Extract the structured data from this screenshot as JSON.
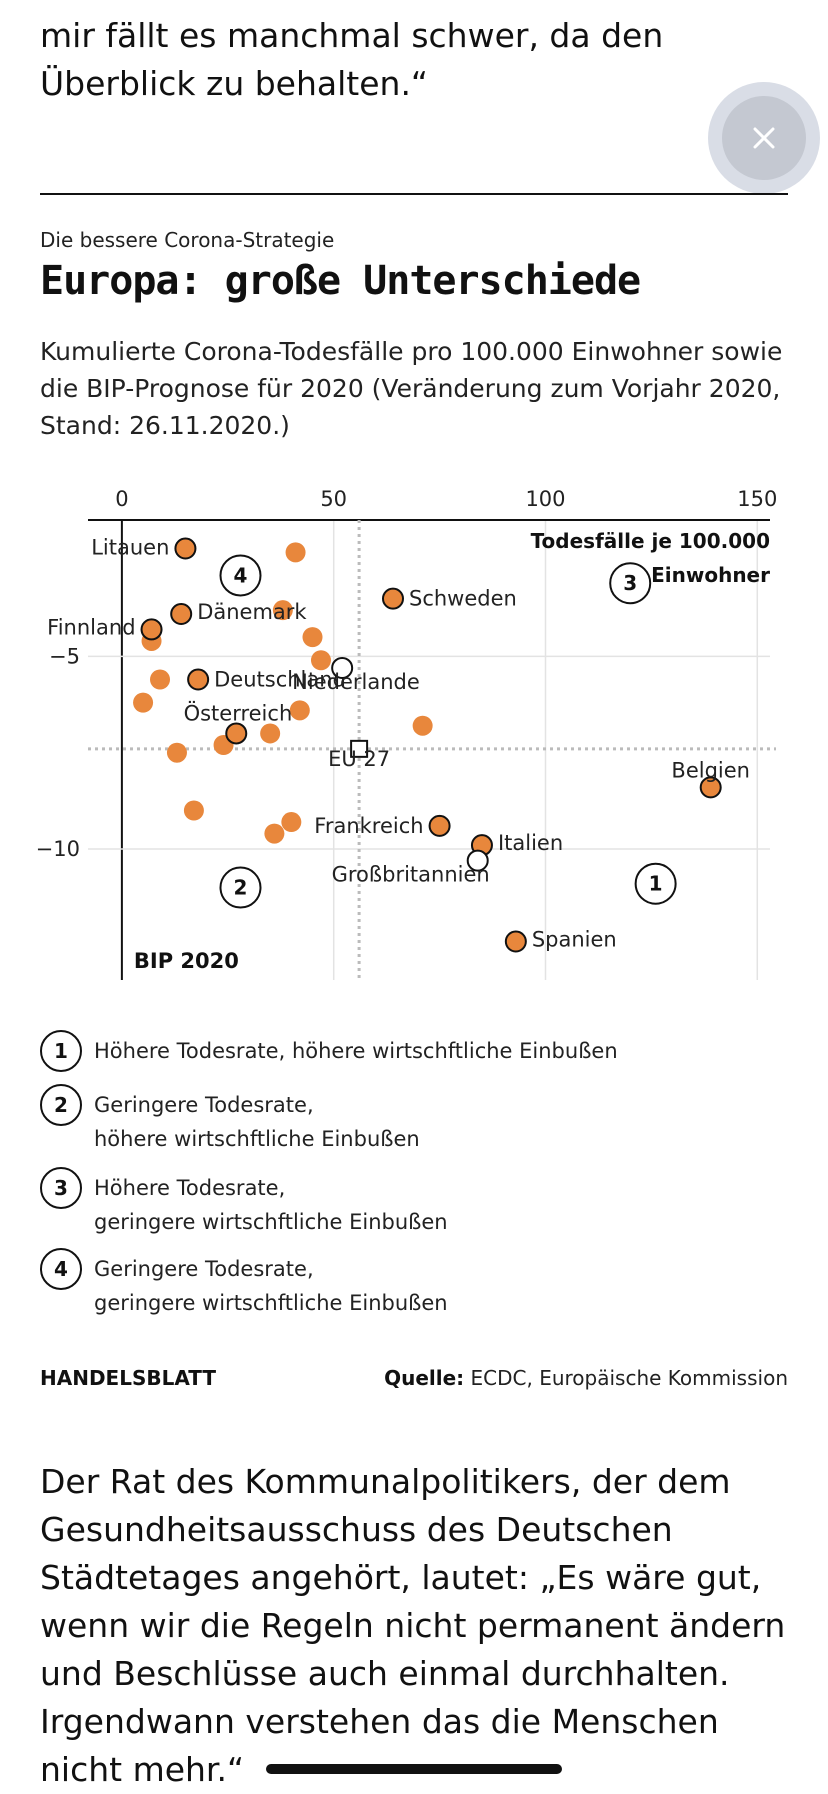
{
  "article": {
    "intro_quote": "mir fällt es manchmal schwer, da den Überblick zu behalten.“",
    "outro_paragraph": "Der Rat des Kommunalpolitikers, der dem Gesundheitsausschuss des Deutschen Städtetages angehört, lautet: „Es wäre gut, wenn wir die Regeln nicht permanent ändern und Beschlüsse auch einmal durchhalten. Irgendwann verstehen das die Menschen nicht mehr.“"
  },
  "close_button": {
    "icon": "close-icon"
  },
  "graphic": {
    "kicker": "Die bessere Corona-Strategie",
    "title": "Europa: große Unterschiede",
    "subtitle": "Kumulierte Corona-Todesfälle pro 100.000 Einwohner sowie die BIP-Prognose für 2020 (Veränderung zum Vorjahr 2020, Stand: 26.11.2020.)",
    "brand": "HANDELSBLATT",
    "source_label": "Quelle:",
    "source_text": "ECDC, Europäische Kommission",
    "legend": [
      {
        "num": "1",
        "text": "Höhere Todesrate, höhere wirtschftliche Einbußen"
      },
      {
        "num": "2",
        "text": "Geringere Todesrate,\nhöhere wirtschftliche Einbußen"
      },
      {
        "num": "3",
        "text": "Höhere Todesrate,\ngeringere wirtschftliche Einbußen"
      },
      {
        "num": "4",
        "text": "Geringere Todesrate,\ngeringere wirtschftliche Einbußen"
      }
    ]
  },
  "chart_data": {
    "type": "scatter",
    "title": "Europa: große Unterschiede",
    "xlabel": "Todesfälle je 100.000 Einwohner",
    "ylabel": "BIP 2020",
    "xlim": [
      -8,
      153
    ],
    "ylim": [
      -13.4,
      -1.2
    ],
    "x_ticks": [
      0,
      50,
      100,
      150
    ],
    "x_tick_labels": [
      "0",
      "50",
      "100",
      "150"
    ],
    "y_ticks": [
      -5,
      -10
    ],
    "y_tick_labels": [
      "−5",
      "−10"
    ],
    "grid": true,
    "reference_lines": {
      "x": 56,
      "y": -7.4
    },
    "colors": {
      "point": "#e8873c",
      "outline": "#111111",
      "grid": "#e3e3e3",
      "reference": "#bbbbbb"
    },
    "labeled_points": [
      {
        "name": "Litauen",
        "x": 15,
        "y": -2.2
      },
      {
        "name": "Dänemark",
        "x": 14,
        "y": -3.9
      },
      {
        "name": "Finnland",
        "x": 7,
        "y": -4.3
      },
      {
        "name": "Schweden",
        "x": 64,
        "y": -3.5
      },
      {
        "name": "Deutschland",
        "x": 18,
        "y": -5.6
      },
      {
        "name": "Niederlande",
        "x": 52,
        "y": -5.3
      },
      {
        "name": "Österreich",
        "x": 27,
        "y": -7.0
      },
      {
        "name": "EU 27",
        "x": 56,
        "y": -7.4
      },
      {
        "name": "Belgien",
        "x": 139,
        "y": -8.4
      },
      {
        "name": "Frankreich",
        "x": 75,
        "y": -9.4
      },
      {
        "name": "Italien",
        "x": 85,
        "y": -9.9
      },
      {
        "name": "Großbritannien",
        "x": 84,
        "y": -10.3
      },
      {
        "name": "Spanien",
        "x": 93,
        "y": -12.4
      }
    ],
    "unlabeled_points": [
      {
        "x": 41,
        "y": -2.3
      },
      {
        "x": 38,
        "y": -3.8
      },
      {
        "x": 7,
        "y": -4.6
      },
      {
        "x": 9,
        "y": -5.6
      },
      {
        "x": 45,
        "y": -4.5
      },
      {
        "x": 47,
        "y": -5.1
      },
      {
        "x": 5,
        "y": -6.2
      },
      {
        "x": 42,
        "y": -6.4
      },
      {
        "x": 13,
        "y": -7.5
      },
      {
        "x": 24,
        "y": -7.3
      },
      {
        "x": 35,
        "y": -7.0
      },
      {
        "x": 71,
        "y": -6.8
      },
      {
        "x": 17,
        "y": -9.0
      },
      {
        "x": 36,
        "y": -9.6
      },
      {
        "x": 40,
        "y": -9.3
      }
    ],
    "quadrant_markers": [
      {
        "num": "1",
        "x": 126,
        "y": -10.9
      },
      {
        "num": "2",
        "x": 28,
        "y": -11.0
      },
      {
        "num": "3",
        "x": 120,
        "y": -3.1
      },
      {
        "num": "4",
        "x": 28,
        "y": -2.9
      }
    ]
  }
}
